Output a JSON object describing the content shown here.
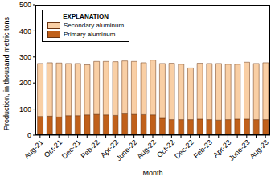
{
  "chart_data": {
    "type": "bar",
    "stacked": true,
    "legend": "upper left",
    "legend_title": "EXPLANATION",
    "x_label": "Month",
    "y_label": "Production, in thousand metric tons",
    "categories": [
      "Aug-21",
      null,
      "Oct-21",
      null,
      "Dec-21",
      null,
      "Feb-22",
      null,
      "Apr-22",
      null,
      "June-22",
      null,
      "Aug-22",
      null,
      "Oct-22",
      null,
      "Dec-22",
      null,
      "Feb-23",
      null,
      "Apr-23",
      null,
      "June-23",
      null,
      "Aug-23"
    ],
    "ylim": [
      0,
      500
    ],
    "yticks": [
      0,
      100,
      200,
      300,
      400,
      500
    ],
    "series": [
      {
        "name": "Primary aluminum",
        "color": "#c0601a",
        "values": [
          72,
          73,
          70,
          75,
          75,
          78,
          80,
          78,
          76,
          82,
          80,
          79,
          78,
          65,
          60,
          60,
          60,
          62,
          60,
          58,
          60,
          62,
          62,
          60,
          60
        ]
      },
      {
        "name": "Secondary aluminum",
        "color": "#f9cfa5",
        "values": [
          203,
          205,
          207,
          200,
          200,
          192,
          203,
          205,
          206,
          203,
          203,
          199,
          210,
          210,
          216,
          212,
          198,
          214,
          215,
          217,
          212,
          210,
          218,
          215,
          218
        ]
      }
    ]
  }
}
